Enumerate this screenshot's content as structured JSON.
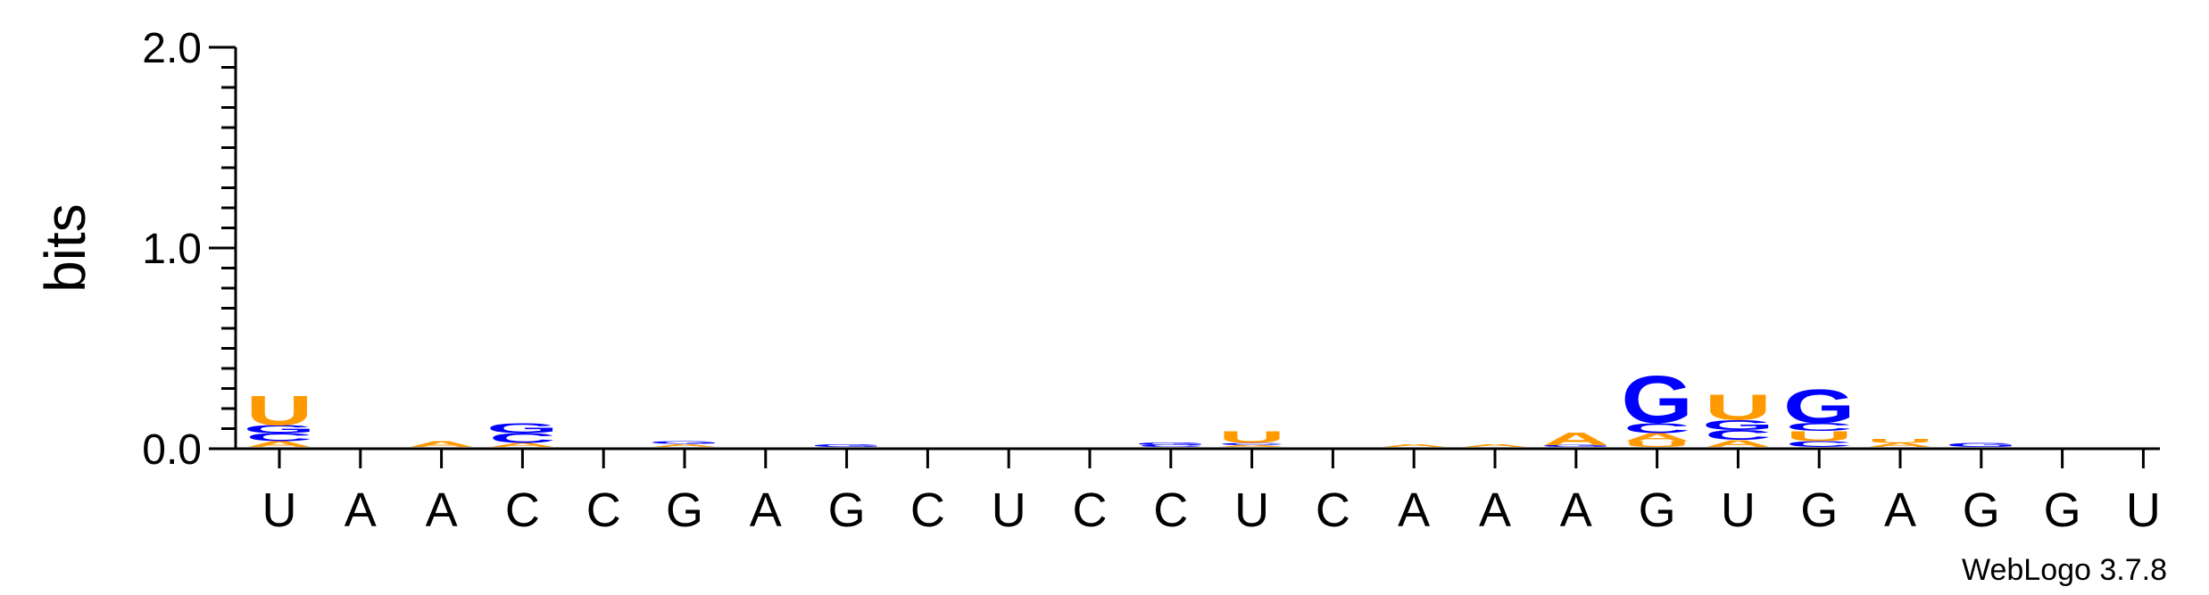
{
  "chart_data": {
    "type": "sequence-logo",
    "ylabel": "bits",
    "ylim": [
      0,
      2.0
    ],
    "yticks": [
      {
        "value": 0.0,
        "label": "0.0"
      },
      {
        "value": 1.0,
        "label": "1.0"
      },
      {
        "value": 2.0,
        "label": "2.0"
      }
    ],
    "positions": [
      "U",
      "A",
      "A",
      "C",
      "C",
      "G",
      "A",
      "G",
      "C",
      "U",
      "C",
      "C",
      "U",
      "C",
      "A",
      "A",
      "A",
      "G",
      "U",
      "G",
      "A",
      "G",
      "G",
      "U"
    ],
    "colors": {
      "A": "#ff9900",
      "U": "#ff9900",
      "C": "#0000ff",
      "G": "#0000ff"
    },
    "stacks": [
      [
        {
          "letter": "A",
          "bits": 0.03
        },
        {
          "letter": "C",
          "bits": 0.04
        },
        {
          "letter": "G",
          "bits": 0.04
        },
        {
          "letter": "U",
          "bits": 0.15
        }
      ],
      [],
      [
        {
          "letter": "A",
          "bits": 0.03
        }
      ],
      [
        {
          "letter": "A",
          "bits": 0.02
        },
        {
          "letter": "C",
          "bits": 0.05
        },
        {
          "letter": "G",
          "bits": 0.05
        }
      ],
      [],
      [
        {
          "letter": "A",
          "bits": 0.015
        },
        {
          "letter": "G",
          "bits": 0.015
        }
      ],
      [],
      [
        {
          "letter": "G",
          "bits": 0.015
        }
      ],
      [],
      [],
      [],
      [
        {
          "letter": "C",
          "bits": 0.01
        },
        {
          "letter": "G",
          "bits": 0.015
        }
      ],
      [
        {
          "letter": "A",
          "bits": 0.01
        },
        {
          "letter": "C",
          "bits": 0.01
        },
        {
          "letter": "U",
          "bits": 0.06
        }
      ],
      [],
      [
        {
          "letter": "A",
          "bits": 0.015
        }
      ],
      [
        {
          "letter": "A",
          "bits": 0.015
        }
      ],
      [
        {
          "letter": "G",
          "bits": 0.01
        },
        {
          "letter": "A",
          "bits": 0.065
        }
      ],
      [
        {
          "letter": "U",
          "bits": 0.03
        },
        {
          "letter": "A",
          "bits": 0.04
        },
        {
          "letter": "C",
          "bits": 0.05
        },
        {
          "letter": "G",
          "bits": 0.24
        }
      ],
      [
        {
          "letter": "A",
          "bits": 0.035
        },
        {
          "letter": "C",
          "bits": 0.05
        },
        {
          "letter": "G",
          "bits": 0.05
        },
        {
          "letter": "U",
          "bits": 0.13
        }
      ],
      [
        {
          "letter": "C",
          "bits": 0.03
        },
        {
          "letter": "U",
          "bits": 0.05
        },
        {
          "letter": "C",
          "bits": 0.04
        },
        {
          "letter": "G",
          "bits": 0.17
        }
      ],
      [
        {
          "letter": "A",
          "bits": 0.02
        },
        {
          "letter": "U",
          "bits": 0.02
        }
      ],
      [
        {
          "letter": "G",
          "bits": 0.02
        }
      ],
      [],
      []
    ],
    "credit": "WebLogo 3.7.8"
  }
}
